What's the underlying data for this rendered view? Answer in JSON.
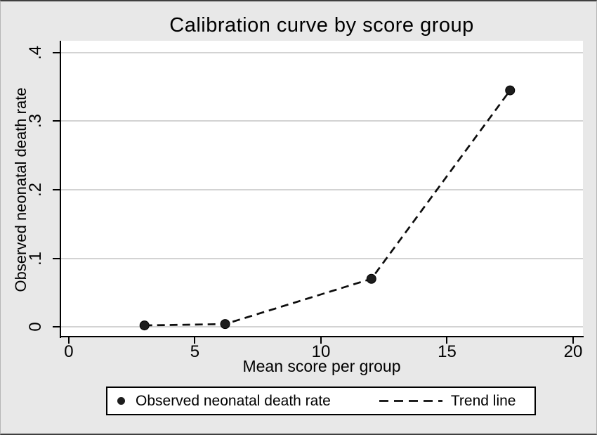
{
  "chart_data": {
    "type": "line",
    "title": "Calibration curve by score group",
    "xlabel": "Mean score per group",
    "ylabel": "Observed neonatal death rate",
    "x": [
      3,
      6.2,
      12,
      17.5
    ],
    "series": [
      {
        "name": "Observed neonatal death rate",
        "type": "scatter",
        "marker": "filled-circle",
        "values": [
          0.002,
          0.004,
          0.07,
          0.345
        ]
      },
      {
        "name": "Trend line",
        "type": "line",
        "style": "dashed",
        "values": [
          0.002,
          0.004,
          0.07,
          0.345
        ]
      }
    ],
    "xticks": {
      "labels": [
        "0",
        "5",
        "10",
        "15",
        "20"
      ],
      "values": [
        0,
        5,
        10,
        15,
        20
      ]
    },
    "yticks": {
      "labels": [
        "0",
        ".1",
        ".2",
        ".3",
        ".4"
      ],
      "values": [
        0,
        0.1,
        0.2,
        0.3,
        0.4
      ]
    },
    "xlim": [
      -0.334,
      20.39
    ],
    "ylim": [
      -0.0133,
      0.4174
    ],
    "grid": "horizontal-only",
    "legend_position": "bottom-center"
  },
  "legend": {
    "items": [
      {
        "label": "Observed neonatal death rate",
        "marker": "filled-circle"
      },
      {
        "label": "Trend line",
        "marker": "dashed-line"
      }
    ]
  },
  "colors": {
    "background": "#e8e8e8",
    "plot_background": "#ffffff",
    "gridline": "#d3d3d3",
    "axis": "#000000",
    "marker": "#1d1d1d",
    "dashed_line": "#0d0d0d"
  }
}
